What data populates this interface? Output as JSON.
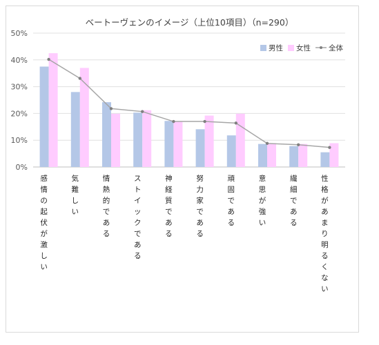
{
  "chart_data": {
    "type": "bar",
    "title": "ベートーヴェンのイメージ（上位10項目）（n=290）",
    "categories": [
      "感情の起伏が激しい",
      "気難しい",
      "情熱的である",
      "ストイックである",
      "神経質である",
      "努力家である",
      "頑固である",
      "意思が強い",
      "繊細である",
      "性格があまり明るくない"
    ],
    "series": [
      {
        "name": "男性",
        "type": "bar",
        "color": "#b4c7e7",
        "values": [
          37.5,
          28.0,
          24.2,
          20.3,
          17.2,
          14.1,
          11.8,
          8.6,
          7.8,
          5.5
        ]
      },
      {
        "name": "女性",
        "type": "bar",
        "color": "#ffccff",
        "values": [
          42.5,
          37.0,
          19.9,
          21.2,
          17.1,
          19.2,
          19.9,
          8.9,
          8.6,
          8.9
        ]
      },
      {
        "name": "全体",
        "type": "line",
        "color": "#a6a6a6",
        "values": [
          40.2,
          33.1,
          21.8,
          20.7,
          17.0,
          17.0,
          16.4,
          8.8,
          8.3,
          7.3
        ]
      }
    ],
    "ylim": [
      0,
      50
    ],
    "yticks": [
      "0%",
      "10%",
      "20%",
      "30%",
      "40%",
      "50%"
    ],
    "grid": true,
    "legend": "top-right",
    "xlabel": "",
    "ylabel": ""
  }
}
